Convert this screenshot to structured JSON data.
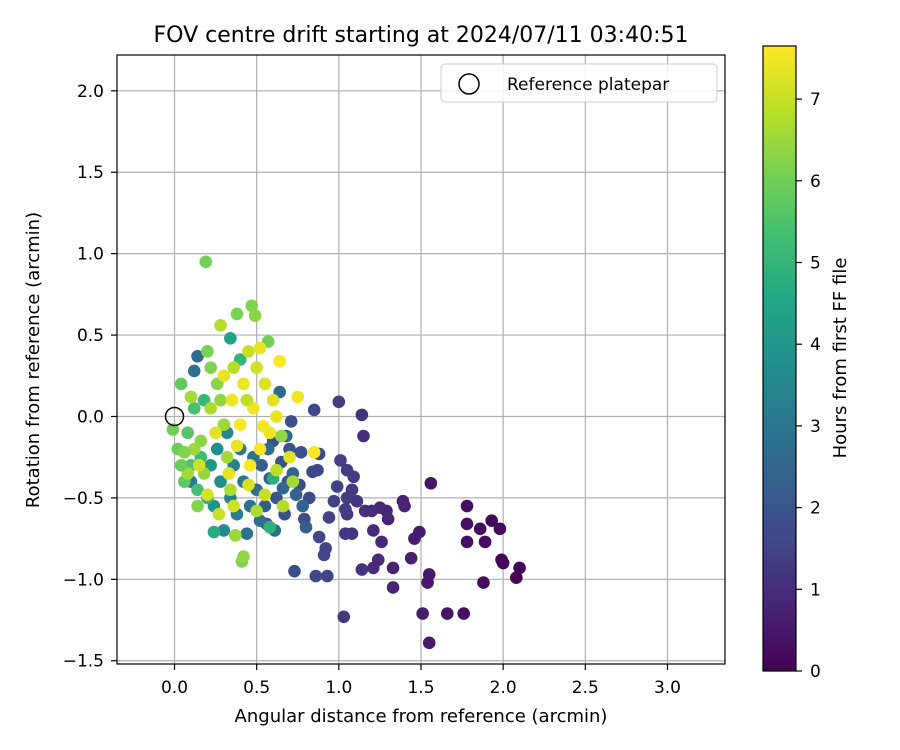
{
  "chart_data": {
    "type": "scatter",
    "title": "FOV centre drift starting at 2024/07/11 03:40:51",
    "xlabel": "Angular distance from reference (arcmin)",
    "ylabel": "Rotation from reference (arcmin)",
    "xlim": [
      -0.35,
      3.35
    ],
    "ylim": [
      -1.52,
      2.22
    ],
    "xticks": [
      "0.0",
      "0.5",
      "1.0",
      "1.5",
      "2.0",
      "2.5",
      "3.0"
    ],
    "xtick_values": [
      0.0,
      0.5,
      1.0,
      1.5,
      2.0,
      2.5,
      3.0
    ],
    "yticks": [
      "−1.5",
      "−1.0",
      "−0.5",
      "0.0",
      "0.5",
      "1.0",
      "1.5",
      "2.0"
    ],
    "ytick_values": [
      -1.5,
      -1.0,
      -0.5,
      0.0,
      0.5,
      1.0,
      1.5,
      2.0
    ],
    "grid": true,
    "legend": {
      "position": "top-right",
      "entries": [
        "Reference platepar"
      ]
    },
    "reference_point": {
      "x": 0.0,
      "y": 0.0,
      "label": "Reference platepar"
    },
    "colorbar": {
      "label": "Hours from first FF file",
      "range": [
        0,
        7.65
      ],
      "ticks": [
        "0",
        "1",
        "2",
        "3",
        "4",
        "5",
        "6",
        "7"
      ],
      "tick_values": [
        0,
        1,
        2,
        3,
        4,
        5,
        6,
        7
      ],
      "colormap": "viridis"
    },
    "points": [
      {
        "x": 2.1,
        "y": -0.93,
        "c": 0.05
      },
      {
        "x": 2.08,
        "y": -0.99,
        "c": 0.08
      },
      {
        "x": 1.99,
        "y": -0.88,
        "c": 0.1
      },
      {
        "x": 2.0,
        "y": -0.9,
        "c": 0.12
      },
      {
        "x": 1.93,
        "y": -0.64,
        "c": 0.15
      },
      {
        "x": 1.98,
        "y": -0.69,
        "c": 0.18
      },
      {
        "x": 1.86,
        "y": -0.69,
        "c": 0.2
      },
      {
        "x": 1.89,
        "y": -0.77,
        "c": 0.22
      },
      {
        "x": 1.88,
        "y": -1.02,
        "c": 0.25
      },
      {
        "x": 1.78,
        "y": -0.55,
        "c": 0.28
      },
      {
        "x": 1.78,
        "y": -0.66,
        "c": 0.3
      },
      {
        "x": 1.78,
        "y": -0.77,
        "c": 0.33
      },
      {
        "x": 1.76,
        "y": -1.21,
        "c": 0.35
      },
      {
        "x": 1.66,
        "y": -1.21,
        "c": 0.4
      },
      {
        "x": 1.56,
        "y": -0.41,
        "c": 0.45
      },
      {
        "x": 1.55,
        "y": -0.97,
        "c": 0.5
      },
      {
        "x": 1.54,
        "y": -1.02,
        "c": 0.52
      },
      {
        "x": 1.55,
        "y": -1.39,
        "c": 0.55
      },
      {
        "x": 1.51,
        "y": -1.21,
        "c": 0.58
      },
      {
        "x": 1.49,
        "y": -0.71,
        "c": 0.6
      },
      {
        "x": 1.46,
        "y": -0.75,
        "c": 0.65
      },
      {
        "x": 1.44,
        "y": -0.87,
        "c": 0.68
      },
      {
        "x": 1.39,
        "y": -0.52,
        "c": 0.7
      },
      {
        "x": 1.4,
        "y": -0.55,
        "c": 0.72
      },
      {
        "x": 1.33,
        "y": -0.93,
        "c": 0.75
      },
      {
        "x": 1.33,
        "y": -1.05,
        "c": 0.78
      },
      {
        "x": 1.29,
        "y": -0.58,
        "c": 0.8
      },
      {
        "x": 1.3,
        "y": -0.63,
        "c": 0.82
      },
      {
        "x": 1.25,
        "y": -0.56,
        "c": 0.85
      },
      {
        "x": 1.26,
        "y": -0.77,
        "c": 0.88
      },
      {
        "x": 1.24,
        "y": -0.88,
        "c": 0.9
      },
      {
        "x": 1.21,
        "y": -0.7,
        "c": 0.92
      },
      {
        "x": 1.21,
        "y": -0.93,
        "c": 0.95
      },
      {
        "x": 1.2,
        "y": -0.58,
        "c": 0.98
      },
      {
        "x": 1.16,
        "y": -0.58,
        "c": 1.0
      },
      {
        "x": 1.15,
        "y": -0.12,
        "c": 1.05
      },
      {
        "x": 1.14,
        "y": 0.01,
        "c": 1.1
      },
      {
        "x": 1.14,
        "y": -0.94,
        "c": 1.12
      },
      {
        "x": 1.11,
        "y": -0.52,
        "c": 1.15
      },
      {
        "x": 1.08,
        "y": -0.72,
        "c": 1.18
      },
      {
        "x": 1.05,
        "y": -0.6,
        "c": 1.2
      },
      {
        "x": 1.04,
        "y": -0.72,
        "c": 1.22
      },
      {
        "x": 1.03,
        "y": -1.23,
        "c": 1.25
      },
      {
        "x": 1.05,
        "y": -0.5,
        "c": 1.28
      },
      {
        "x": 1.08,
        "y": -0.45,
        "c": 1.3
      },
      {
        "x": 1.09,
        "y": -0.37,
        "c": 1.33
      },
      {
        "x": 1.05,
        "y": -0.33,
        "c": 1.35
      },
      {
        "x": 1.04,
        "y": -0.57,
        "c": 1.38
      },
      {
        "x": 1.0,
        "y": 0.09,
        "c": 1.4
      },
      {
        "x": 1.01,
        "y": -0.27,
        "c": 1.42
      },
      {
        "x": 0.99,
        "y": -0.43,
        "c": 1.45
      },
      {
        "x": 0.97,
        "y": -0.52,
        "c": 1.48
      },
      {
        "x": 0.94,
        "y": -0.62,
        "c": 1.5
      },
      {
        "x": 0.93,
        "y": -0.98,
        "c": 1.52
      },
      {
        "x": 0.92,
        "y": -0.81,
        "c": 1.55
      },
      {
        "x": 0.91,
        "y": -0.85,
        "c": 1.58
      },
      {
        "x": 0.88,
        "y": -0.74,
        "c": 1.6
      },
      {
        "x": 0.86,
        "y": -0.98,
        "c": 1.62
      },
      {
        "x": 0.87,
        "y": -0.33,
        "c": 1.65
      },
      {
        "x": 0.88,
        "y": -0.23,
        "c": 1.68
      },
      {
        "x": 0.85,
        "y": 0.04,
        "c": 1.7
      },
      {
        "x": 0.84,
        "y": -0.34,
        "c": 1.72
      },
      {
        "x": 0.82,
        "y": -0.5,
        "c": 1.75
      },
      {
        "x": 0.79,
        "y": -0.63,
        "c": 1.78
      },
      {
        "x": 0.77,
        "y": -0.22,
        "c": 1.8
      },
      {
        "x": 0.76,
        "y": -0.42,
        "c": 1.82
      },
      {
        "x": 0.73,
        "y": -0.95,
        "c": 1.85
      },
      {
        "x": 0.71,
        "y": -0.03,
        "c": 1.88
      },
      {
        "x": 0.7,
        "y": -0.2,
        "c": 1.9
      },
      {
        "x": 0.69,
        "y": -0.4,
        "c": 1.92
      },
      {
        "x": 0.67,
        "y": -0.6,
        "c": 1.95
      },
      {
        "x": 0.65,
        "y": -0.28,
        "c": 1.98
      },
      {
        "x": 0.62,
        "y": -0.5,
        "c": 2.0
      },
      {
        "x": 0.6,
        "y": -0.15,
        "c": 2.05
      },
      {
        "x": 0.58,
        "y": -0.38,
        "c": 2.1
      },
      {
        "x": 0.56,
        "y": -0.66,
        "c": 2.15
      },
      {
        "x": 0.55,
        "y": -0.55,
        "c": 2.2
      },
      {
        "x": 0.53,
        "y": -0.3,
        "c": 2.25
      },
      {
        "x": 0.8,
        "y": -0.68,
        "c": 2.3
      },
      {
        "x": 0.78,
        "y": -0.55,
        "c": 2.35
      },
      {
        "x": 0.74,
        "y": -0.48,
        "c": 2.4
      },
      {
        "x": 0.72,
        "y": -0.35,
        "c": 2.45
      },
      {
        "x": 0.68,
        "y": -0.12,
        "c": 2.5
      },
      {
        "x": 0.66,
        "y": -0.44,
        "c": 2.55
      },
      {
        "x": 0.64,
        "y": 0.15,
        "c": 2.6
      },
      {
        "x": 0.61,
        "y": -0.7,
        "c": 2.65
      },
      {
        "x": 0.57,
        "y": -0.2,
        "c": 2.7
      },
      {
        "x": 0.52,
        "y": -0.64,
        "c": 2.75
      },
      {
        "x": 0.5,
        "y": -0.45,
        "c": 2.8
      },
      {
        "x": 0.48,
        "y": -0.25,
        "c": 2.85
      },
      {
        "x": 0.46,
        "y": -0.55,
        "c": 2.9
      },
      {
        "x": 0.44,
        "y": -0.72,
        "c": 2.95
      },
      {
        "x": 0.14,
        "y": 0.37,
        "c": 2.6
      },
      {
        "x": 0.12,
        "y": 0.28,
        "c": 2.8
      },
      {
        "x": 0.1,
        "y": -0.4,
        "c": 3.0
      },
      {
        "x": 0.42,
        "y": -0.4,
        "c": 3.0
      },
      {
        "x": 0.4,
        "y": -0.2,
        "c": 3.1
      },
      {
        "x": 0.38,
        "y": -0.6,
        "c": 3.2
      },
      {
        "x": 0.36,
        "y": -0.3,
        "c": 3.3
      },
      {
        "x": 0.34,
        "y": -0.5,
        "c": 3.4
      },
      {
        "x": 0.32,
        "y": -0.1,
        "c": 3.5
      },
      {
        "x": 0.3,
        "y": -0.7,
        "c": 3.6
      },
      {
        "x": 0.28,
        "y": -0.4,
        "c": 3.7
      },
      {
        "x": 0.26,
        "y": -0.2,
        "c": 3.8
      },
      {
        "x": 0.24,
        "y": -0.55,
        "c": 3.9
      },
      {
        "x": 0.22,
        "y": -0.3,
        "c": 4.0
      },
      {
        "x": 0.34,
        "y": 0.48,
        "c": 4.5
      },
      {
        "x": 0.24,
        "y": -0.71,
        "c": 4.7
      },
      {
        "x": 0.6,
        "y": -0.38,
        "c": 4.8
      },
      {
        "x": 0.58,
        "y": -0.68,
        "c": 4.9
      },
      {
        "x": 0.4,
        "y": 0.35,
        "c": 5.0
      },
      {
        "x": 0.2,
        "y": -0.5,
        "c": 5.0
      },
      {
        "x": 0.18,
        "y": 0.1,
        "c": 5.1
      },
      {
        "x": 0.16,
        "y": -0.25,
        "c": 5.2
      },
      {
        "x": 0.14,
        "y": -0.45,
        "c": 5.3
      },
      {
        "x": 0.12,
        "y": 0.05,
        "c": 5.4
      },
      {
        "x": 0.1,
        "y": -0.3,
        "c": 5.5
      },
      {
        "x": 0.08,
        "y": -0.1,
        "c": 5.6
      },
      {
        "x": 0.06,
        "y": -0.4,
        "c": 5.7
      },
      {
        "x": 0.04,
        "y": 0.2,
        "c": 5.8
      },
      {
        "x": 0.02,
        "y": -0.2,
        "c": 5.9
      },
      {
        "x": -0.01,
        "y": -0.08,
        "c": 6.0
      },
      {
        "x": 0.19,
        "y": 0.95,
        "c": 6.0
      },
      {
        "x": 0.38,
        "y": 0.63,
        "c": 6.1
      },
      {
        "x": 0.47,
        "y": 0.68,
        "c": 6.2
      },
      {
        "x": 0.49,
        "y": 0.62,
        "c": 6.3
      },
      {
        "x": 0.57,
        "y": 0.46,
        "c": 6.0
      },
      {
        "x": 0.41,
        "y": -0.89,
        "c": 6.2
      },
      {
        "x": 0.42,
        "y": -0.86,
        "c": 6.4
      },
      {
        "x": 0.37,
        "y": -0.73,
        "c": 6.5
      },
      {
        "x": 0.65,
        "y": -0.12,
        "c": 6.4
      },
      {
        "x": 0.2,
        "y": 0.4,
        "c": 6.1
      },
      {
        "x": 0.22,
        "y": 0.3,
        "c": 6.2
      },
      {
        "x": 0.26,
        "y": 0.2,
        "c": 6.3
      },
      {
        "x": 0.28,
        "y": 0.1,
        "c": 6.4
      },
      {
        "x": 0.3,
        "y": -0.05,
        "c": 6.5
      },
      {
        "x": 0.32,
        "y": -0.25,
        "c": 6.6
      },
      {
        "x": 0.34,
        "y": -0.45,
        "c": 6.7
      },
      {
        "x": 0.36,
        "y": 0.3,
        "c": 6.8
      },
      {
        "x": 0.16,
        "y": -0.15,
        "c": 6.3
      },
      {
        "x": 0.14,
        "y": -0.55,
        "c": 6.2
      },
      {
        "x": 0.18,
        "y": -0.35,
        "c": 6.4
      },
      {
        "x": 0.12,
        "y": -0.2,
        "c": 6.5
      },
      {
        "x": 0.08,
        "y": -0.35,
        "c": 6.6
      },
      {
        "x": 0.28,
        "y": 0.56,
        "c": 6.8
      },
      {
        "x": 0.45,
        "y": 0.4,
        "c": 7.0
      },
      {
        "x": 0.5,
        "y": 0.3,
        "c": 7.1
      },
      {
        "x": 0.55,
        "y": 0.2,
        "c": 7.2
      },
      {
        "x": 0.6,
        "y": 0.1,
        "c": 7.3
      },
      {
        "x": 0.62,
        "y": 0.0,
        "c": 7.4
      },
      {
        "x": 0.58,
        "y": -0.1,
        "c": 7.5
      },
      {
        "x": 0.52,
        "y": -0.2,
        "c": 7.55
      },
      {
        "x": 0.46,
        "y": -0.3,
        "c": 7.6
      },
      {
        "x": 0.4,
        "y": -0.05,
        "c": 7.6
      },
      {
        "x": 0.35,
        "y": 0.1,
        "c": 7.5
      },
      {
        "x": 0.3,
        "y": 0.25,
        "c": 7.4
      },
      {
        "x": 0.25,
        "y": -0.1,
        "c": 7.3
      },
      {
        "x": 0.2,
        "y": -0.48,
        "c": 7.2
      },
      {
        "x": 0.15,
        "y": -0.3,
        "c": 7.1
      },
      {
        "x": 0.42,
        "y": 0.2,
        "c": 7.45
      },
      {
        "x": 0.48,
        "y": 0.05,
        "c": 7.5
      },
      {
        "x": 0.54,
        "y": -0.06,
        "c": 7.55
      },
      {
        "x": 0.38,
        "y": -0.18,
        "c": 7.4
      },
      {
        "x": 0.33,
        "y": -0.35,
        "c": 7.35
      },
      {
        "x": 0.64,
        "y": 0.34,
        "c": 7.6
      },
      {
        "x": 0.75,
        "y": 0.12,
        "c": 7.5
      },
      {
        "x": 0.85,
        "y": -0.22,
        "c": 7.6
      },
      {
        "x": 0.7,
        "y": -0.25,
        "c": 7.3
      },
      {
        "x": 0.52,
        "y": 0.42,
        "c": 7.4
      },
      {
        "x": 0.45,
        "y": -0.42,
        "c": 7.2
      },
      {
        "x": 0.27,
        "y": -0.6,
        "c": 7.0
      },
      {
        "x": 0.36,
        "y": -0.55,
        "c": 7.1
      },
      {
        "x": 0.55,
        "y": -0.48,
        "c": 7.0
      },
      {
        "x": 0.62,
        "y": -0.33,
        "c": 6.9
      },
      {
        "x": 0.66,
        "y": -0.55,
        "c": 6.8
      },
      {
        "x": 0.5,
        "y": -0.58,
        "c": 6.7
      },
      {
        "x": 0.72,
        "y": -0.4,
        "c": 6.6
      },
      {
        "x": 0.44,
        "y": 0.1,
        "c": 6.9
      },
      {
        "x": 0.22,
        "y": 0.05,
        "c": 6.7
      },
      {
        "x": 0.1,
        "y": 0.12,
        "c": 6.6
      },
      {
        "x": 0.06,
        "y": -0.22,
        "c": 6.2
      },
      {
        "x": 0.04,
        "y": -0.3,
        "c": 5.9
      }
    ]
  }
}
